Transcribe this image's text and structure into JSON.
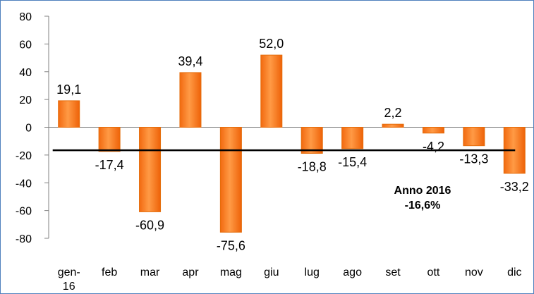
{
  "chart_data": {
    "type": "bar",
    "categories": [
      "gen-16",
      "feb",
      "mar",
      "apr",
      "mag",
      "giu",
      "lug",
      "ago",
      "set",
      "ott",
      "nov",
      "dic"
    ],
    "category_label_lines": [
      [
        "gen-",
        "16"
      ],
      [
        "feb"
      ],
      [
        "mar"
      ],
      [
        "apr"
      ],
      [
        "mag"
      ],
      [
        "giu"
      ],
      [
        "lug"
      ],
      [
        "ago"
      ],
      [
        "set"
      ],
      [
        "ott"
      ],
      [
        "nov"
      ],
      [
        "dic"
      ]
    ],
    "values": [
      19.1,
      -17.4,
      -60.9,
      39.4,
      -75.6,
      52.0,
      -18.8,
      -15.4,
      2.2,
      -4.2,
      -13.3,
      -33.2
    ],
    "value_labels": [
      "19,1",
      "-17,4",
      "-60,9",
      "39,4",
      "-75,6",
      "52,0",
      "-18,8",
      "-15,4",
      "2,2",
      "-4,2",
      "-13,3",
      "-33,2"
    ],
    "ylim": [
      -80,
      80
    ],
    "yticks": [
      80,
      60,
      40,
      20,
      0,
      -20,
      -40,
      -60,
      -80
    ],
    "ytick_labels": [
      "80",
      "60",
      "40",
      "20",
      "0",
      "-20",
      "-40",
      "-60",
      "-80"
    ],
    "reference_line": {
      "value": -16.6
    },
    "annotation": {
      "line1": "Anno 2016",
      "line2": "-16,6%"
    },
    "title": "",
    "xlabel": "",
    "ylabel": "",
    "grid": false,
    "legend": "none",
    "colors": {
      "bar": "#ff7f0e",
      "bar_edge": "#e46c0a",
      "axis": "#808080",
      "reference_line": "#000000",
      "frame": "#4f81bd"
    }
  }
}
